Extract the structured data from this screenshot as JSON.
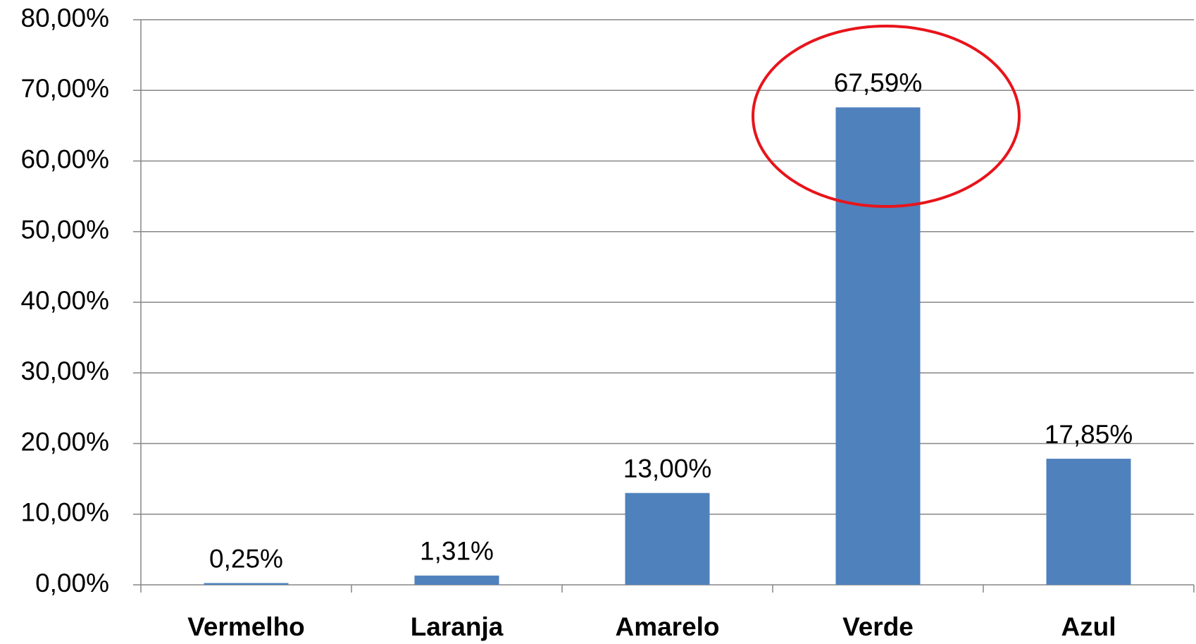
{
  "chart_data": {
    "type": "bar",
    "categories": [
      "Vermelho",
      "Laranja",
      "Amarelo",
      "Verde",
      "Azul"
    ],
    "values": [
      0.25,
      1.31,
      13.0,
      67.59,
      17.85
    ],
    "value_labels": [
      "0,25%",
      "1,31%",
      "13,00%",
      "67,59%",
      "17,85%"
    ],
    "color": "#4f81bd",
    "ylim": [
      0,
      80
    ],
    "yticks": [
      {
        "value": 0,
        "label": "0,00%"
      },
      {
        "value": 10,
        "label": "10,00%"
      },
      {
        "value": 20,
        "label": "20,00%"
      },
      {
        "value": 30,
        "label": "30,00%"
      },
      {
        "value": 40,
        "label": "40,00%"
      },
      {
        "value": 50,
        "label": "50,00%"
      },
      {
        "value": 60,
        "label": "60,00%"
      },
      {
        "value": 70,
        "label": "70,00%"
      },
      {
        "value": 80,
        "label": "80,00%"
      }
    ],
    "grid": true
  }
}
